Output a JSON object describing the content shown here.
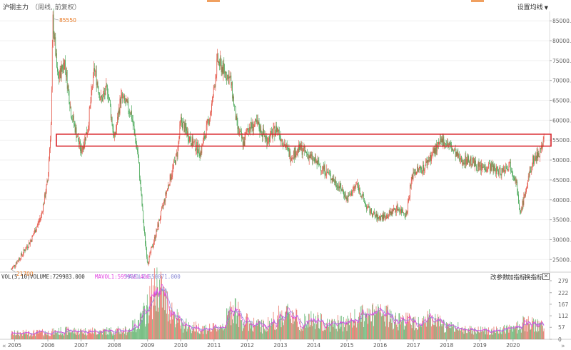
{
  "header": {
    "title": "沪铜主力",
    "subtitle": "（周线, 前复权）",
    "settings_label": "设置均线"
  },
  "volume_panel": {
    "indicator_label": "VOL(5,10)",
    "volume_label": "VOLUME:729983.000",
    "mavol1_label": "MAVOL1:595998.400",
    "mavol2_label": "MAVOL2:550071.000",
    "tools": [
      "改参数",
      "加指标",
      "换指标"
    ],
    "close_symbol": "✕"
  },
  "navigation": {
    "left": "«",
    "right": "»"
  },
  "colors": {
    "up": "#e24a3b",
    "down": "#3aa14a",
    "mavol1": "#e040e0",
    "mavol2": "#8b8bd6",
    "highlight_box": "#d9262c",
    "annotation": "#e8741a"
  },
  "chart_data": [
    {
      "type": "candlestick",
      "title": "沪铜主力",
      "x_tick_labels": [
        "2005",
        "2006",
        "2007",
        "2008",
        "2009",
        "2010",
        "2011",
        "2012",
        "2013",
        "2014",
        "2015",
        "2016",
        "2017",
        "2018",
        "2019",
        "2020"
      ],
      "y_tick_labels": [
        "25000.0",
        "30000.0",
        "35000.0",
        "40000.0",
        "45000.0",
        "50000.0",
        "55000.0",
        "60000.0",
        "65000.0",
        "70000.0",
        "75000.0",
        "80000.0",
        "85000.0"
      ],
      "ylim": [
        22000,
        87000
      ],
      "annotations": {
        "high": "85550",
        "low": "21700"
      },
      "highlight_band": [
        53500,
        56500
      ],
      "price_path": [
        {
          "x": 2004.9,
          "y": 22500
        },
        {
          "x": 2005.2,
          "y": 26000
        },
        {
          "x": 2005.5,
          "y": 30000
        },
        {
          "x": 2005.8,
          "y": 36000
        },
        {
          "x": 2006.0,
          "y": 45000
        },
        {
          "x": 2006.1,
          "y": 60000
        },
        {
          "x": 2006.15,
          "y": 85550
        },
        {
          "x": 2006.3,
          "y": 70000
        },
        {
          "x": 2006.5,
          "y": 75000
        },
        {
          "x": 2006.7,
          "y": 62000
        },
        {
          "x": 2007.0,
          "y": 52000
        },
        {
          "x": 2007.2,
          "y": 58000
        },
        {
          "x": 2007.4,
          "y": 73000
        },
        {
          "x": 2007.6,
          "y": 65000
        },
        {
          "x": 2007.8,
          "y": 68000
        },
        {
          "x": 2008.0,
          "y": 55000
        },
        {
          "x": 2008.2,
          "y": 66000
        },
        {
          "x": 2008.5,
          "y": 62000
        },
        {
          "x": 2008.7,
          "y": 52000
        },
        {
          "x": 2008.9,
          "y": 32000
        },
        {
          "x": 2009.0,
          "y": 24000
        },
        {
          "x": 2009.3,
          "y": 33000
        },
        {
          "x": 2009.6,
          "y": 43000
        },
        {
          "x": 2009.9,
          "y": 52000
        },
        {
          "x": 2010.0,
          "y": 60000
        },
        {
          "x": 2010.3,
          "y": 55000
        },
        {
          "x": 2010.6,
          "y": 52000
        },
        {
          "x": 2010.9,
          "y": 62000
        },
        {
          "x": 2011.0,
          "y": 68000
        },
        {
          "x": 2011.1,
          "y": 75000
        },
        {
          "x": 2011.5,
          "y": 70000
        },
        {
          "x": 2011.7,
          "y": 58000
        },
        {
          "x": 2011.9,
          "y": 54000
        },
        {
          "x": 2012.0,
          "y": 58000
        },
        {
          "x": 2012.3,
          "y": 59000
        },
        {
          "x": 2012.6,
          "y": 55000
        },
        {
          "x": 2012.9,
          "y": 58000
        },
        {
          "x": 2013.0,
          "y": 56000
        },
        {
          "x": 2013.3,
          "y": 51000
        },
        {
          "x": 2013.6,
          "y": 53000
        },
        {
          "x": 2014.0,
          "y": 50000
        },
        {
          "x": 2014.4,
          "y": 47000
        },
        {
          "x": 2014.9,
          "y": 42000
        },
        {
          "x": 2015.0,
          "y": 40000
        },
        {
          "x": 2015.3,
          "y": 44000
        },
        {
          "x": 2015.6,
          "y": 38000
        },
        {
          "x": 2015.9,
          "y": 35500
        },
        {
          "x": 2016.2,
          "y": 36000
        },
        {
          "x": 2016.5,
          "y": 38000
        },
        {
          "x": 2016.8,
          "y": 36500
        },
        {
          "x": 2016.9,
          "y": 43000
        },
        {
          "x": 2017.0,
          "y": 47000
        },
        {
          "x": 2017.3,
          "y": 48000
        },
        {
          "x": 2017.6,
          "y": 52000
        },
        {
          "x": 2017.9,
          "y": 55000
        },
        {
          "x": 2018.1,
          "y": 53500
        },
        {
          "x": 2018.4,
          "y": 50000
        },
        {
          "x": 2018.7,
          "y": 50000
        },
        {
          "x": 2019.0,
          "y": 48000
        },
        {
          "x": 2019.3,
          "y": 48500
        },
        {
          "x": 2019.6,
          "y": 47000
        },
        {
          "x": 2019.9,
          "y": 49000
        },
        {
          "x": 2020.1,
          "y": 45000
        },
        {
          "x": 2020.2,
          "y": 36000
        },
        {
          "x": 2020.4,
          "y": 43000
        },
        {
          "x": 2020.6,
          "y": 50000
        },
        {
          "x": 2020.8,
          "y": 52000
        },
        {
          "x": 2020.95,
          "y": 56000
        }
      ]
    },
    {
      "type": "bar",
      "title": "VOL(5,10)",
      "y_tick_labels": [
        "0",
        "57",
        "112",
        "167",
        "222",
        "279"
      ],
      "ylim": [
        0,
        279
      ],
      "volume_path": [
        {
          "x": 2004.9,
          "y": 28
        },
        {
          "x": 2006.0,
          "y": 32
        },
        {
          "x": 2006.5,
          "y": 40
        },
        {
          "x": 2007.5,
          "y": 38
        },
        {
          "x": 2008.4,
          "y": 42
        },
        {
          "x": 2008.8,
          "y": 90
        },
        {
          "x": 2009.0,
          "y": 150
        },
        {
          "x": 2009.3,
          "y": 260
        },
        {
          "x": 2009.5,
          "y": 190
        },
        {
          "x": 2009.8,
          "y": 120
        },
        {
          "x": 2010.0,
          "y": 70
        },
        {
          "x": 2010.5,
          "y": 55
        },
        {
          "x": 2011.0,
          "y": 50
        },
        {
          "x": 2011.3,
          "y": 70
        },
        {
          "x": 2011.6,
          "y": 170
        },
        {
          "x": 2011.8,
          "y": 90
        },
        {
          "x": 2012.5,
          "y": 60
        },
        {
          "x": 2013.0,
          "y": 110
        },
        {
          "x": 2013.3,
          "y": 130
        },
        {
          "x": 2013.6,
          "y": 80
        },
        {
          "x": 2014.0,
          "y": 90
        },
        {
          "x": 2014.5,
          "y": 70
        },
        {
          "x": 2015.0,
          "y": 80
        },
        {
          "x": 2015.5,
          "y": 110
        },
        {
          "x": 2016.0,
          "y": 120
        },
        {
          "x": 2016.5,
          "y": 95
        },
        {
          "x": 2017.0,
          "y": 85
        },
        {
          "x": 2017.5,
          "y": 95
        },
        {
          "x": 2018.0,
          "y": 60
        },
        {
          "x": 2018.5,
          "y": 50
        },
        {
          "x": 2019.0,
          "y": 45
        },
        {
          "x": 2019.5,
          "y": 40
        },
        {
          "x": 2020.0,
          "y": 50
        },
        {
          "x": 2020.3,
          "y": 75
        },
        {
          "x": 2020.95,
          "y": 60
        }
      ]
    }
  ]
}
